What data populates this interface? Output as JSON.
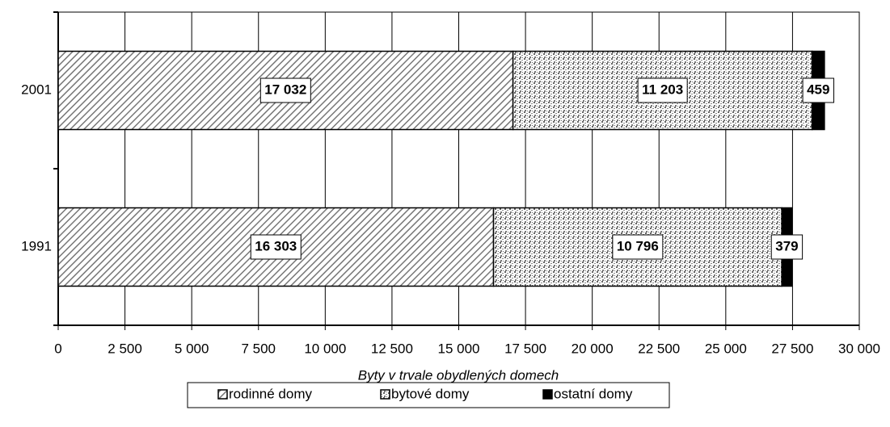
{
  "chart_data": {
    "type": "stacked_barh",
    "categories": [
      "1991",
      "2001"
    ],
    "series": [
      {
        "name": "rodinné domy",
        "color": "#000000",
        "fill_pattern": "hatch",
        "values": [
          16303,
          17032
        ],
        "value_labels": [
          "16 303",
          "17 032"
        ]
      },
      {
        "name": "bytové domy",
        "color": "#000000",
        "fill_pattern": "dots",
        "values": [
          10796,
          11203
        ],
        "value_labels": [
          "10 796",
          "11 203"
        ]
      },
      {
        "name": "ostatní domy",
        "color": "#000000",
        "fill_pattern": "solid",
        "values": [
          379,
          459
        ]
      }
    ],
    "xlabel": "Byty v trvale obydlených domech",
    "xlim": [
      0,
      30000
    ],
    "xticks": [
      0,
      {
        "value": 2500,
        "label": "2 500"
      },
      {
        "value": 5000,
        "label": "5 000"
      },
      {
        "value": 7500,
        "label": "7 500"
      },
      {
        "value": 10000,
        "label": "10 000"
      },
      {
        "value": 12500,
        "label": "12 500"
      },
      {
        "value": 15000,
        "label": "15 000"
      },
      {
        "value": 17500,
        "label": "17 500"
      },
      {
        "value": 20000,
        "label": "20 000"
      },
      {
        "value": 22500,
        "label": "22 500"
      },
      {
        "value": 25000,
        "label": "25 000"
      },
      {
        "value": 27500,
        "label": "27 500"
      },
      {
        "value": 30000,
        "label": "30 000"
      }
    ],
    "grid": true,
    "legend": "bottom"
  }
}
